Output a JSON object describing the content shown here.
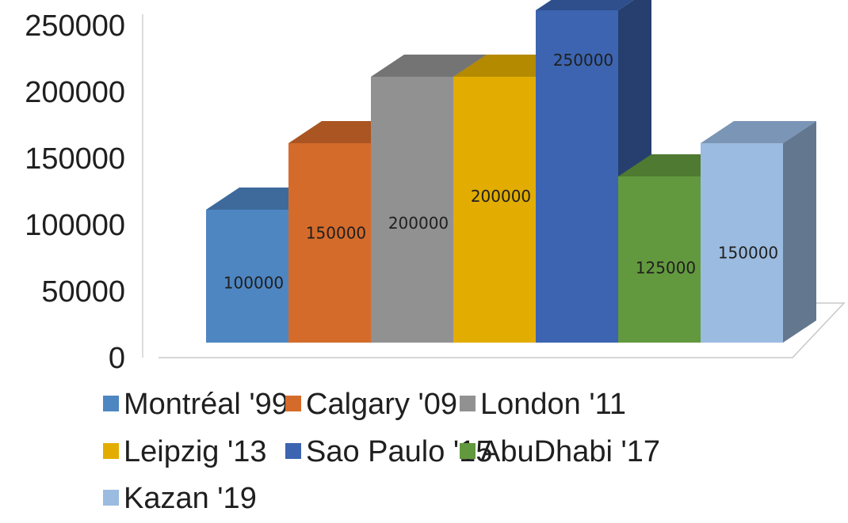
{
  "chart_data": {
    "type": "bar",
    "style": "3d-column",
    "categories": [
      "Montréal '99",
      "Calgary '09",
      "London '11",
      "Leipzig '13",
      "Sao Paulo '15",
      "AbuDhabi '17",
      "Kazan '19"
    ],
    "values": [
      100000,
      150000,
      200000,
      200000,
      250000,
      125000,
      150000
    ],
    "data_labels": [
      "100000",
      "150000",
      "200000",
      "200000",
      "250000",
      "125000",
      "150000"
    ],
    "y_ticks": [
      "0",
      "50000",
      "100000",
      "150000",
      "200000",
      "250000"
    ],
    "ylim": [
      0,
      250000
    ],
    "grid": false,
    "legend_position": "bottom",
    "colors": {
      "front": [
        "#4e86c2",
        "#d56b2b",
        "#919191",
        "#e2ad00",
        "#3c64b0",
        "#63993e",
        "#9bbbe0"
      ],
      "top": [
        "#3d6a9b",
        "#aa5522",
        "#747474",
        "#b48a00",
        "#2f4f8c",
        "#4f7a31",
        "#7a95b5"
      ],
      "side": [
        "#33577f",
        "#8c461c",
        "#5f5f5f",
        "#937100",
        "#273f6e",
        "#416428",
        "#63778f"
      ]
    }
  }
}
